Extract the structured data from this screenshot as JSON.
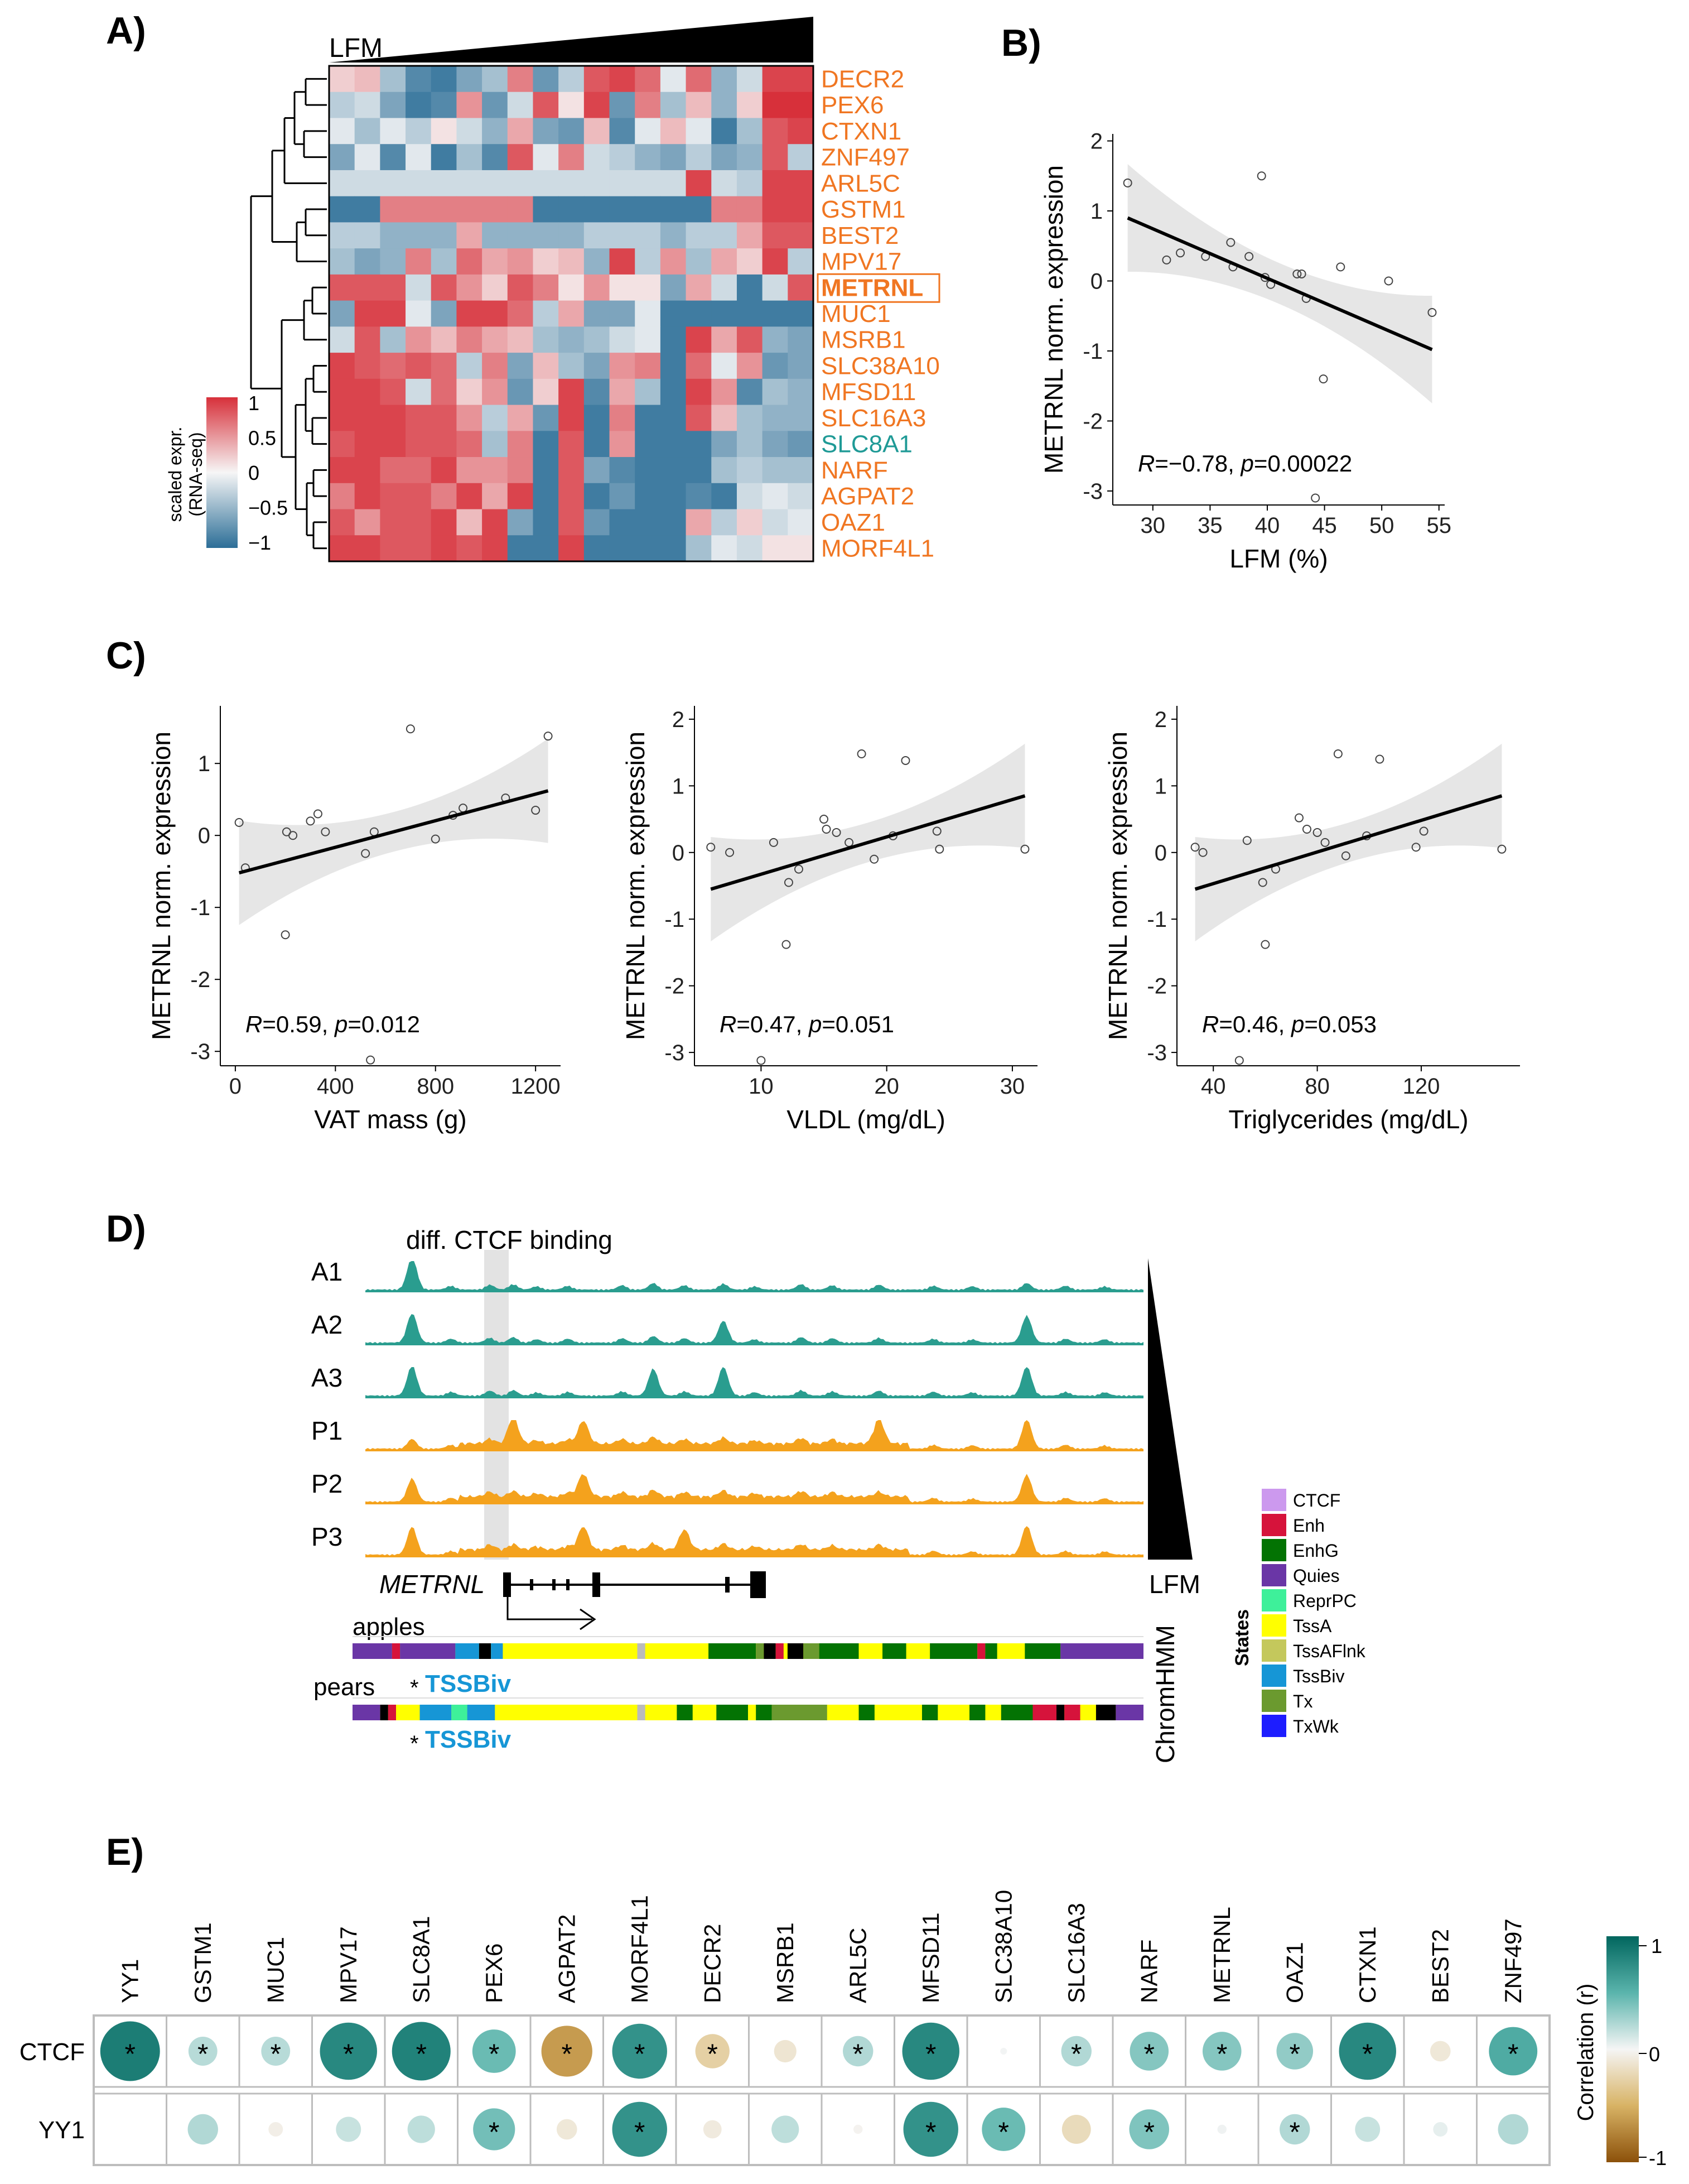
{
  "panels": {
    "A": "A)",
    "B": "B)",
    "C": "C)",
    "D": "D)",
    "E": "E)"
  },
  "colors": {
    "orange": "#f07622",
    "teal": "#1f9a96",
    "red": "#d7303a",
    "blue": "#2c6e97",
    "track_teal": "#2a9d8f",
    "track_orange": "#f4a21d"
  },
  "panel_a": {
    "lfm_label": "LFM",
    "genes": [
      {
        "name": "DECR2",
        "color": "orange"
      },
      {
        "name": "PEX6",
        "color": "orange"
      },
      {
        "name": "CTXN1",
        "color": "orange"
      },
      {
        "name": "ZNF497",
        "color": "orange"
      },
      {
        "name": "ARL5C",
        "color": "orange"
      },
      {
        "name": "GSTM1",
        "color": "orange"
      },
      {
        "name": "BEST2",
        "color": "orange"
      },
      {
        "name": "MPV17",
        "color": "orange"
      },
      {
        "name": "METRNL",
        "color": "orange",
        "boxed": true
      },
      {
        "name": "MUC1",
        "color": "orange"
      },
      {
        "name": "MSRB1",
        "color": "orange"
      },
      {
        "name": "SLC38A10",
        "color": "orange"
      },
      {
        "name": "MFSD11",
        "color": "orange"
      },
      {
        "name": "SLC16A3",
        "color": "orange"
      },
      {
        "name": "SLC8A1",
        "color": "teal"
      },
      {
        "name": "NARF",
        "color": "orange"
      },
      {
        "name": "AGPAT2",
        "color": "orange"
      },
      {
        "name": "OAZ1",
        "color": "orange"
      },
      {
        "name": "MORF4L1",
        "color": "orange"
      }
    ],
    "heatmap": [
      [
        0.2,
        0.3,
        -0.4,
        -0.8,
        -0.9,
        -0.6,
        -0.4,
        0.6,
        -0.7,
        -0.3,
        0.8,
        0.9,
        0.7,
        -0.1,
        0.7,
        -0.5,
        -0.2,
        0.9,
        0.9
      ],
      [
        -0.3,
        -0.2,
        -0.6,
        -0.9,
        -0.8,
        0.5,
        -0.7,
        -0.2,
        0.8,
        0.1,
        0.9,
        -0.7,
        0.6,
        -0.4,
        0.3,
        -0.5,
        0.2,
        1.0,
        1.0
      ],
      [
        -0.1,
        -0.4,
        -0.1,
        -0.3,
        0.1,
        -0.2,
        -0.5,
        0.4,
        -0.6,
        -0.7,
        0.3,
        -0.8,
        -0.1,
        0.3,
        -0.1,
        -0.9,
        -0.4,
        0.8,
        0.9
      ],
      [
        -0.6,
        -0.1,
        -0.8,
        -0.1,
        -0.9,
        -0.4,
        -0.8,
        0.8,
        -0.1,
        0.6,
        -0.2,
        -0.3,
        -0.5,
        -0.6,
        -0.3,
        -0.6,
        -0.5,
        0.8,
        -0.3
      ],
      [
        -0.2,
        -0.2,
        -0.2,
        -0.2,
        -0.2,
        -0.2,
        -0.2,
        -0.2,
        -0.2,
        -0.2,
        -0.2,
        -0.2,
        -0.2,
        -0.2,
        0.9,
        -0.2,
        -0.3,
        0.9,
        0.9
      ],
      [
        -0.9,
        -0.9,
        0.6,
        0.6,
        0.6,
        0.6,
        0.6,
        0.6,
        -0.9,
        -0.9,
        -0.9,
        -0.9,
        -0.9,
        -0.9,
        -0.9,
        0.6,
        0.6,
        0.9,
        0.9
      ],
      [
        -0.3,
        -0.3,
        -0.5,
        -0.5,
        -0.5,
        0.4,
        -0.5,
        -0.5,
        -0.5,
        -0.5,
        -0.3,
        -0.3,
        -0.3,
        -0.5,
        -0.3,
        -0.3,
        0.4,
        0.8,
        0.8
      ],
      [
        -0.4,
        -0.6,
        -0.5,
        0.6,
        -0.4,
        0.7,
        0.4,
        0.5,
        0.2,
        0.3,
        -0.5,
        0.9,
        -0.3,
        0.5,
        -0.4,
        0.4,
        0.2,
        0.9,
        -0.3
      ],
      [
        0.8,
        0.8,
        0.8,
        -0.2,
        0.8,
        0.5,
        0.2,
        0.8,
        0.6,
        0.1,
        0.5,
        0.1,
        0.1,
        -0.6,
        0.4,
        -0.2,
        -0.9,
        -0.2,
        0.8
      ],
      [
        -0.6,
        0.9,
        0.9,
        -0.1,
        -0.6,
        0.9,
        0.9,
        0.7,
        -0.3,
        0.4,
        -0.6,
        -0.6,
        -0.1,
        -0.9,
        -0.9,
        -0.9,
        -0.9,
        -0.9,
        -0.9
      ],
      [
        -0.2,
        0.8,
        -0.4,
        0.5,
        0.3,
        0.6,
        0.4,
        0.3,
        -0.4,
        -0.5,
        -0.4,
        -0.2,
        -0.1,
        -0.9,
        0.9,
        0.4,
        0.8,
        -0.5,
        -0.6
      ],
      [
        0.9,
        0.8,
        0.7,
        0.8,
        0.7,
        -0.3,
        0.6,
        -0.6,
        0.3,
        -0.4,
        -0.6,
        0.5,
        0.6,
        -0.9,
        0.7,
        -0.1,
        0.5,
        -0.7,
        -0.6
      ],
      [
        0.9,
        0.9,
        0.8,
        -0.2,
        0.7,
        0.2,
        0.5,
        -0.7,
        0.2,
        0.9,
        -0.8,
        0.4,
        -0.4,
        -0.9,
        0.9,
        0.5,
        -0.8,
        -0.4,
        -0.5
      ],
      [
        0.9,
        0.9,
        0.9,
        0.8,
        0.8,
        0.5,
        -0.3,
        0.4,
        -0.7,
        0.9,
        -0.9,
        0.6,
        -0.9,
        -0.9,
        0.8,
        0.3,
        -0.4,
        -0.5,
        -0.5
      ],
      [
        0.8,
        0.9,
        0.9,
        0.8,
        0.8,
        0.7,
        -0.4,
        0.6,
        -0.9,
        0.8,
        -0.9,
        0.5,
        -0.9,
        -0.9,
        -0.9,
        -0.6,
        -0.4,
        -0.6,
        -0.7
      ],
      [
        0.9,
        0.9,
        0.7,
        0.7,
        0.9,
        0.5,
        0.5,
        0.6,
        -0.9,
        0.8,
        -0.6,
        -0.8,
        -0.9,
        -0.9,
        -0.9,
        -0.4,
        -0.3,
        -0.4,
        -0.4
      ],
      [
        0.6,
        0.9,
        0.8,
        0.8,
        0.6,
        0.9,
        0.4,
        0.9,
        -0.9,
        0.8,
        -0.9,
        -0.7,
        -0.9,
        -0.9,
        -0.8,
        -0.9,
        -0.2,
        -0.1,
        -0.2
      ],
      [
        0.8,
        0.5,
        0.8,
        0.8,
        0.9,
        0.3,
        0.9,
        -0.6,
        -0.9,
        0.8,
        -0.7,
        -0.9,
        -0.9,
        -0.9,
        0.4,
        -0.3,
        0.2,
        -0.2,
        -0.1
      ],
      [
        0.9,
        0.9,
        0.8,
        0.8,
        0.9,
        0.8,
        0.9,
        -0.9,
        -0.9,
        0.9,
        -0.9,
        -0.9,
        -0.9,
        -0.9,
        -0.4,
        -0.1,
        -0.2,
        0.1,
        0.1
      ]
    ],
    "legend": {
      "title_lines": [
        "scaled expr.",
        "(RNA-seq)"
      ],
      "ticks": [
        1,
        0.5,
        0,
        -0.5,
        -1
      ],
      "tick_labels": [
        "1",
        "0.5",
        "0",
        "−0.5",
        "−1"
      ]
    }
  },
  "chart_data": [
    {
      "type": "scatter",
      "panel": "B",
      "xlabel": "LFM (%)",
      "ylabel": "METRNL norm. expression",
      "xlim": [
        26.5,
        55.5
      ],
      "ylim": [
        -3.2,
        2.1
      ],
      "xticks": [
        30,
        35,
        40,
        45,
        50,
        55
      ],
      "yticks": [
        2,
        1,
        0,
        -1,
        -2,
        -3
      ],
      "points": [
        [
          27.8,
          1.4
        ],
        [
          31.2,
          0.3
        ],
        [
          32.4,
          0.4
        ],
        [
          34.6,
          0.35
        ],
        [
          36.8,
          0.55
        ],
        [
          37.0,
          0.2
        ],
        [
          38.4,
          0.35
        ],
        [
          39.5,
          1.5
        ],
        [
          39.8,
          0.05
        ],
        [
          40.3,
          -0.05
        ],
        [
          42.6,
          0.1
        ],
        [
          43.0,
          0.1
        ],
        [
          43.4,
          -0.25
        ],
        [
          44.2,
          -3.1
        ],
        [
          44.9,
          -1.4
        ],
        [
          46.4,
          0.2
        ],
        [
          50.6,
          0.0
        ],
        [
          54.4,
          -0.45
        ]
      ],
      "fit": [
        [
          27.8,
          0.9
        ],
        [
          54.4,
          -0.98
        ]
      ],
      "annotation": {
        "r_label": "R",
        "r_value": "=−0.78, ",
        "p_label": "p",
        "p_value": "=0.00022"
      }
    },
    {
      "type": "scatter",
      "panel": "C1",
      "xlabel": "VAT mass (g)",
      "ylabel": "METRNL norm. expression",
      "xlim": [
        -60,
        1300
      ],
      "ylim": [
        -3.2,
        1.8
      ],
      "xticks": [
        0,
        400,
        800,
        1200
      ],
      "yticks": [
        1,
        0,
        -1,
        -2,
        -3
      ],
      "points": [
        [
          15,
          0.18
        ],
        [
          40,
          -0.45
        ],
        [
          200,
          -1.38
        ],
        [
          205,
          0.05
        ],
        [
          230,
          0.0
        ],
        [
          300,
          0.2
        ],
        [
          330,
          0.3
        ],
        [
          360,
          0.05
        ],
        [
          520,
          -0.25
        ],
        [
          540,
          -3.12
        ],
        [
          555,
          0.05
        ],
        [
          700,
          1.48
        ],
        [
          800,
          -0.05
        ],
        [
          870,
          0.28
        ],
        [
          910,
          0.38
        ],
        [
          1080,
          0.52
        ],
        [
          1200,
          0.35
        ],
        [
          1250,
          1.38
        ]
      ],
      "fit": [
        [
          15,
          -0.52
        ],
        [
          1250,
          0.62
        ]
      ],
      "annotation": {
        "r_label": "R",
        "r_value": "=0.59, ",
        "p_label": "p",
        "p_value": "=0.012"
      }
    },
    {
      "type": "scatter",
      "panel": "C2",
      "xlabel": "VLDL (mg/dL)",
      "ylabel": "METRNL norm. expression",
      "xlim": [
        4.7,
        32
      ],
      "ylim": [
        -3.2,
        2.2
      ],
      "xticks": [
        10,
        20,
        30
      ],
      "yticks": [
        2,
        1,
        0,
        -1,
        -2,
        -3
      ],
      "points": [
        [
          6.0,
          0.08
        ],
        [
          7.5,
          0.0
        ],
        [
          10.0,
          -3.12
        ],
        [
          11.0,
          0.15
        ],
        [
          12.0,
          -1.38
        ],
        [
          12.2,
          -0.45
        ],
        [
          13.0,
          -0.25
        ],
        [
          15.0,
          0.5
        ],
        [
          15.2,
          0.35
        ],
        [
          16.0,
          0.3
        ],
        [
          17.0,
          0.15
        ],
        [
          18.0,
          1.48
        ],
        [
          19.0,
          -0.1
        ],
        [
          20.5,
          0.25
        ],
        [
          21.5,
          1.38
        ],
        [
          24.0,
          0.32
        ],
        [
          24.2,
          0.05
        ],
        [
          31.0,
          0.05
        ]
      ],
      "fit": [
        [
          6.0,
          -0.55
        ],
        [
          31.0,
          0.85
        ]
      ],
      "annotation": {
        "r_label": "R",
        "r_value": "=0.47, ",
        "p_label": "p",
        "p_value": "=0.051"
      }
    },
    {
      "type": "scatter",
      "panel": "C3",
      "xlabel": "Triglycerides (mg/dL)",
      "ylabel": "METRNL norm. expression",
      "xlim": [
        26,
        158
      ],
      "ylim": [
        -3.2,
        2.2
      ],
      "xticks": [
        40,
        80,
        120
      ],
      "yticks": [
        2,
        1,
        0,
        -1,
        -2,
        -3
      ],
      "points": [
        [
          33,
          0.08
        ],
        [
          36,
          0.0
        ],
        [
          50,
          -3.12
        ],
        [
          53,
          0.18
        ],
        [
          59,
          -0.45
        ],
        [
          60,
          -1.38
        ],
        [
          64,
          -0.25
        ],
        [
          73,
          0.52
        ],
        [
          76,
          0.35
        ],
        [
          80,
          0.3
        ],
        [
          83,
          0.15
        ],
        [
          88,
          1.48
        ],
        [
          91,
          -0.05
        ],
        [
          99,
          0.25
        ],
        [
          104,
          1.4
        ],
        [
          118,
          0.08
        ],
        [
          121,
          0.32
        ],
        [
          151,
          0.05
        ]
      ],
      "fit": [
        [
          33,
          -0.55
        ],
        [
          151,
          0.85
        ]
      ],
      "annotation": {
        "r_label": "R",
        "r_value": "=0.46, ",
        "p_label": "p",
        "p_value": "=0.053"
      }
    },
    {
      "type": "heatmap",
      "panel": "E",
      "columns": [
        "YY1",
        "GSTM1",
        "MUC1",
        "MPV17",
        "SLC8A1",
        "PEX6",
        "AGPAT2",
        "MORF4L1",
        "DECR2",
        "MSRB1",
        "ARL5C",
        "MFSD11",
        "SLC38A10",
        "SLC16A3",
        "NARF",
        "METRNL",
        "OAZ1",
        "CTXN1",
        "BEST2",
        "ZNF497"
      ],
      "rows": [
        {
          "name": "CTCF",
          "values": [
            0.85,
            0.2,
            0.2,
            0.78,
            0.82,
            0.45,
            -0.62,
            0.72,
            -0.28,
            -0.12,
            0.22,
            0.78,
            0.01,
            0.22,
            0.36,
            0.36,
            0.32,
            0.78,
            -0.1,
            0.56
          ],
          "sig": [
            true,
            true,
            true,
            true,
            true,
            true,
            true,
            true,
            true,
            false,
            true,
            true,
            false,
            true,
            true,
            true,
            true,
            true,
            false,
            true
          ]
        },
        {
          "name": "YY1",
          "values": [
            null,
            0.22,
            -0.05,
            0.15,
            0.18,
            0.42,
            -0.1,
            0.72,
            -0.08,
            0.18,
            -0.02,
            0.72,
            0.45,
            -0.2,
            0.38,
            0.02,
            0.22,
            0.15,
            0.05,
            0.22
          ],
          "sig": [
            false,
            false,
            false,
            false,
            false,
            true,
            false,
            true,
            false,
            false,
            false,
            true,
            true,
            false,
            true,
            false,
            true,
            false,
            false,
            false
          ]
        }
      ],
      "legend": {
        "title": "Correlation (r)",
        "ticks": [
          "1",
          "0",
          "-1"
        ]
      }
    }
  ],
  "panel_d": {
    "title": "diff. CTCF binding",
    "tracks": [
      {
        "label": "A1",
        "color": "track_teal"
      },
      {
        "label": "A2",
        "color": "track_teal"
      },
      {
        "label": "A3",
        "color": "track_teal"
      },
      {
        "label": "P1",
        "color": "track_orange"
      },
      {
        "label": "P2",
        "color": "track_orange"
      },
      {
        "label": "P3",
        "color": "track_orange"
      }
    ],
    "gene_label": "METRNL",
    "lfm_label": "LFM",
    "chromhmm_label": "ChromHMM",
    "groups": [
      {
        "label": "apples",
        "tss_label": "TSSBiv",
        "star": "*"
      },
      {
        "label": "pears",
        "tss_label": "TSSBiv",
        "star": "*"
      }
    ],
    "states_title": "States",
    "states": [
      {
        "name": "CTCF",
        "color": "#cc99ee"
      },
      {
        "name": "Enh",
        "color": "#d6133b"
      },
      {
        "name": "EnhG",
        "color": "#037303"
      },
      {
        "name": "Quies",
        "color": "#6a36a6"
      },
      {
        "name": "ReprPC",
        "color": "#3ef09a"
      },
      {
        "name": "TssA",
        "color": "#ffff00"
      },
      {
        "name": "TssAFlnk",
        "color": "#c4c85c"
      },
      {
        "name": "TssBiv",
        "color": "#1696d6"
      },
      {
        "name": "Tx",
        "color": "#6b9a2f"
      },
      {
        "name": "TxWk",
        "color": "#1d1dff"
      }
    ]
  }
}
